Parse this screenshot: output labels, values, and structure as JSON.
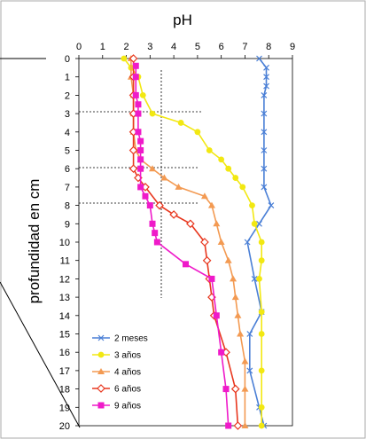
{
  "chart_data": {
    "type": "line",
    "title": "pH",
    "xlabel": "pH",
    "ylabel": "profundidad en cm",
    "xlim": [
      0,
      9
    ],
    "ylim": [
      0,
      20
    ],
    "x_ticks": [
      "0",
      "1",
      "2",
      "3",
      "4",
      "5",
      "6",
      "7",
      "8",
      "9"
    ],
    "y_ticks": [
      "0",
      "1",
      "2",
      "3",
      "4",
      "5",
      "6",
      "7",
      "8",
      "9",
      "10",
      "11",
      "12",
      "13",
      "14",
      "15",
      "16",
      "17",
      "18",
      "19",
      "20"
    ],
    "x_axis_position": "top",
    "y_inverted": true,
    "grid": false,
    "legend_position": "bottom-left",
    "series": [
      {
        "name": "2 meses",
        "color": "#4a7fd6",
        "marker": "x",
        "points": [
          [
            7.6,
            0
          ],
          [
            7.9,
            0.5
          ],
          [
            7.9,
            1
          ],
          [
            7.9,
            1.5
          ],
          [
            7.8,
            2
          ],
          [
            7.8,
            3
          ],
          [
            7.8,
            4
          ],
          [
            7.8,
            5
          ],
          [
            7.8,
            6
          ],
          [
            7.8,
            7
          ],
          [
            8.1,
            8
          ],
          [
            7.6,
            9
          ],
          [
            7.1,
            10
          ],
          [
            7.4,
            12
          ],
          [
            7.7,
            13.8
          ],
          [
            7.2,
            15
          ],
          [
            7.2,
            17
          ],
          [
            7.6,
            19
          ],
          [
            7.8,
            20
          ]
        ]
      },
      {
        "name": "3 años",
        "color": "#f2e812",
        "marker": "circle",
        "points": [
          [
            1.9,
            0
          ],
          [
            2.2,
            0.5
          ],
          [
            2.5,
            1
          ],
          [
            2.7,
            2
          ],
          [
            3.1,
            3
          ],
          [
            4.3,
            3.5
          ],
          [
            5.0,
            4
          ],
          [
            5.5,
            5
          ],
          [
            6.0,
            5.5
          ],
          [
            6.3,
            6
          ],
          [
            6.6,
            6.5
          ],
          [
            6.9,
            7
          ],
          [
            7.3,
            8
          ],
          [
            7.4,
            9
          ],
          [
            7.7,
            10
          ],
          [
            7.7,
            11
          ],
          [
            7.6,
            12
          ],
          [
            7.7,
            13.8
          ],
          [
            7.7,
            15
          ],
          [
            7.7,
            17
          ],
          [
            7.7,
            19
          ],
          [
            7.7,
            20
          ]
        ]
      },
      {
        "name": "4 años",
        "color": "#f39a52",
        "marker": "triangle",
        "points": [
          [
            2.2,
            0
          ],
          [
            2.2,
            1
          ],
          [
            2.3,
            2
          ],
          [
            2.3,
            3
          ],
          [
            2.3,
            4
          ],
          [
            2.4,
            5
          ],
          [
            2.6,
            5.5
          ],
          [
            3.1,
            6
          ],
          [
            3.6,
            6.5
          ],
          [
            4.2,
            7
          ],
          [
            5.3,
            7.5
          ],
          [
            5.6,
            8
          ],
          [
            5.8,
            9
          ],
          [
            6.0,
            10
          ],
          [
            6.3,
            11
          ],
          [
            6.5,
            12
          ],
          [
            6.6,
            13
          ],
          [
            6.7,
            14
          ],
          [
            6.8,
            15
          ],
          [
            7.0,
            16.5
          ],
          [
            7.0,
            18
          ],
          [
            7.0,
            20
          ]
        ]
      },
      {
        "name": "6 años",
        "color": "#e8371e",
        "marker": "diamond",
        "points": [
          [
            2.3,
            0
          ],
          [
            2.3,
            1
          ],
          [
            2.3,
            2
          ],
          [
            2.3,
            3
          ],
          [
            2.3,
            4
          ],
          [
            2.3,
            5
          ],
          [
            2.3,
            6
          ],
          [
            2.5,
            6.5
          ],
          [
            2.8,
            7
          ],
          [
            3.4,
            8
          ],
          [
            4.0,
            8.5
          ],
          [
            4.7,
            9
          ],
          [
            5.3,
            10
          ],
          [
            5.4,
            11
          ],
          [
            5.5,
            12
          ],
          [
            5.6,
            13
          ],
          [
            5.7,
            14
          ],
          [
            6.2,
            16
          ],
          [
            6.6,
            18
          ],
          [
            6.7,
            20
          ]
        ]
      },
      {
        "name": "9 años",
        "color": "#ef1ac9",
        "marker": "square",
        "points": [
          [
            2.4,
            0.4
          ],
          [
            2.4,
            1
          ],
          [
            2.4,
            2
          ],
          [
            2.5,
            2.5
          ],
          [
            2.5,
            3
          ],
          [
            2.5,
            4
          ],
          [
            2.6,
            4.5
          ],
          [
            2.6,
            5
          ],
          [
            2.6,
            5.5
          ],
          [
            2.6,
            6
          ],
          [
            2.6,
            7
          ],
          [
            2.8,
            7.5
          ],
          [
            3.0,
            8
          ],
          [
            3.1,
            9
          ],
          [
            3.2,
            9.5
          ],
          [
            3.3,
            10
          ],
          [
            4.5,
            11.2
          ],
          [
            5.6,
            12
          ],
          [
            5.8,
            14
          ],
          [
            6.0,
            16
          ],
          [
            6.2,
            18
          ],
          [
            6.3,
            20
          ]
        ]
      }
    ]
  }
}
